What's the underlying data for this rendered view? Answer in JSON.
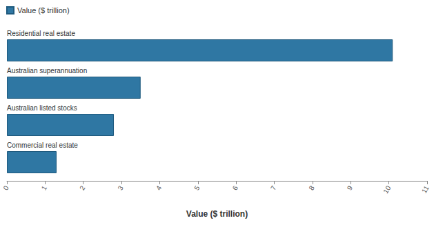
{
  "chart_data": {
    "type": "bar",
    "orientation": "horizontal",
    "categories": [
      "Residential real estate",
      "Australian superannuation",
      "Australian listed stocks",
      "Commercial real estate"
    ],
    "series": [
      {
        "name": "Value ($ trillion)",
        "color": "#2f77a3",
        "values": [
          10.1,
          3.5,
          2.8,
          1.3
        ]
      }
    ],
    "xlabel": "Value ($ trillion)",
    "xlim": [
      0,
      11
    ],
    "xticks": [
      0,
      1,
      2,
      3,
      4,
      5,
      6,
      7,
      8,
      9,
      10,
      11
    ],
    "grid": false,
    "legend": "top-left"
  }
}
